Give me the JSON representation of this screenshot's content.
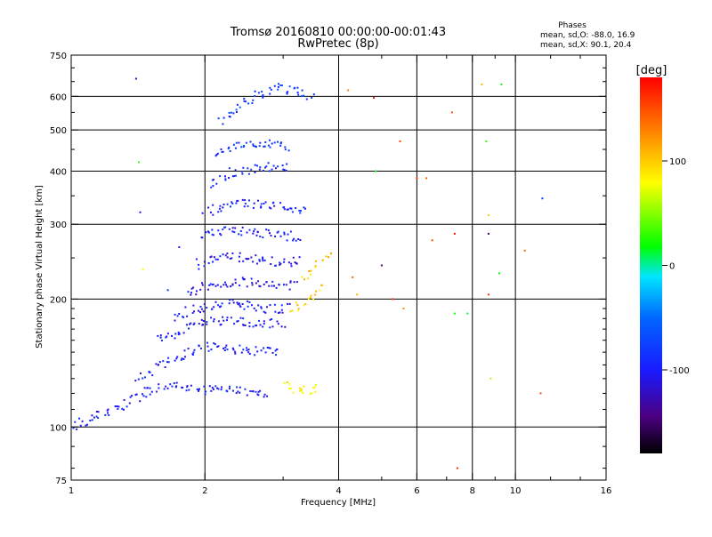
{
  "header": {
    "title": "Tromsø 20160810 00:00:00-00:01:43",
    "subtitle": "RwPretec (8p)",
    "stats_title": "Phases",
    "stats_o": "mean, sd,O: -88.0, 16.9",
    "stats_x": "mean, sd,X:  90.1, 20.4"
  },
  "colorbar": {
    "label": "[deg]",
    "min": -180,
    "max": 180,
    "ticks": [
      {
        "value": 100,
        "label": "100"
      },
      {
        "value": 0,
        "label": "0"
      },
      {
        "value": -100,
        "label": "-100"
      }
    ]
  },
  "chart_data": {
    "type": "scatter",
    "xlabel": "Frequency [MHz]",
    "ylabel": "Stationary phase Virtual Height [km]",
    "xscale": "log",
    "yscale": "log",
    "xlim": [
      1,
      16
    ],
    "ylim": [
      75,
      750
    ],
    "grid": true,
    "xticks": [
      {
        "value": 1,
        "label": "1"
      },
      {
        "value": 2,
        "label": "2"
      },
      {
        "value": 4,
        "label": "4"
      },
      {
        "value": 6,
        "label": "6"
      },
      {
        "value": 8,
        "label": "8"
      },
      {
        "value": 10,
        "label": "10"
      },
      {
        "value": 16,
        "label": "16"
      }
    ],
    "xgrid": [
      2,
      4,
      6,
      8,
      10
    ],
    "xminor": [
      3,
      5,
      7,
      9,
      12,
      14
    ],
    "yticks": [
      {
        "value": 75,
        "label": "75"
      },
      {
        "value": 100,
        "label": "100"
      },
      {
        "value": 200,
        "label": "200"
      },
      {
        "value": 300,
        "label": "300"
      },
      {
        "value": 400,
        "label": "400"
      },
      {
        "value": 500,
        "label": "500"
      },
      {
        "value": 600,
        "label": "600"
      },
      {
        "value": 750,
        "label": "750"
      }
    ],
    "ygrid": [
      100,
      200,
      300,
      400,
      500,
      600
    ],
    "yminor": [
      80,
      90,
      110,
      120,
      130,
      140,
      150,
      160,
      170,
      180,
      190,
      250,
      350,
      450,
      550,
      650,
      700
    ],
    "color_scale": "phase [deg], -180 to 180",
    "traces": [
      {
        "x": [
          1.0,
          1.25,
          1.45,
          1.65,
          1.85,
          2.0,
          2.2,
          2.45,
          2.65,
          2.8
        ],
        "y": [
          100,
          110,
          120,
          126,
          123,
          122,
          122,
          121,
          120,
          120
        ],
        "phase": -100
      },
      {
        "x": [
          1.4,
          1.6,
          1.85,
          2.1,
          2.4,
          2.7,
          2.95
        ],
        "y": [
          130,
          140,
          150,
          155,
          152,
          150,
          150
        ],
        "phase": -100
      },
      {
        "x": [
          1.55,
          1.8,
          2.1,
          2.4,
          2.7,
          3.0
        ],
        "y": [
          160,
          170,
          178,
          176,
          175,
          175
        ],
        "phase": -100
      },
      {
        "x": [
          1.7,
          1.9,
          2.2,
          2.5,
          2.8,
          3.1
        ],
        "y": [
          180,
          190,
          195,
          193,
          190,
          190
        ],
        "phase": -100
      },
      {
        "x": [
          1.8,
          2.0,
          2.3,
          2.6,
          2.9,
          3.2
        ],
        "y": [
          205,
          215,
          220,
          218,
          216,
          215
        ],
        "phase": -110
      },
      {
        "x": [
          1.9,
          2.05,
          2.3,
          2.6,
          2.9,
          3.3
        ],
        "y": [
          240,
          250,
          252,
          248,
          245,
          245
        ],
        "phase": -105
      },
      {
        "x": [
          1.95,
          2.1,
          2.4,
          2.7,
          3.0,
          3.3
        ],
        "y": [
          280,
          290,
          290,
          285,
          282,
          280
        ],
        "phase": -100
      },
      {
        "x": [
          2.0,
          2.2,
          2.5,
          2.8,
          3.1,
          3.4
        ],
        "y": [
          320,
          330,
          335,
          330,
          328,
          325
        ],
        "phase": -95
      },
      {
        "x": [
          2.05,
          2.25,
          2.55,
          2.85,
          3.1
        ],
        "y": [
          370,
          395,
          405,
          410,
          405
        ],
        "phase": -90
      },
      {
        "x": [
          2.1,
          2.3,
          2.6,
          2.9,
          3.1
        ],
        "y": [
          440,
          455,
          465,
          460,
          450
        ],
        "phase": -85
      },
      {
        "x": [
          2.15,
          2.35,
          2.6,
          2.9,
          3.2,
          3.5
        ],
        "y": [
          520,
          560,
          600,
          630,
          620,
          600
        ],
        "phase": -80
      },
      {
        "x": [
          3.0,
          3.2,
          3.4,
          3.6
        ],
        "y": [
          125,
          122,
          122,
          123
        ],
        "phase": 90
      },
      {
        "x": [
          3.1,
          3.3,
          3.5,
          3.7
        ],
        "y": [
          190,
          195,
          205,
          215
        ],
        "phase": 95
      },
      {
        "x": [
          3.3,
          3.5,
          3.7,
          3.85
        ],
        "y": [
          215,
          235,
          250,
          260
        ],
        "phase": 105
      }
    ],
    "outliers": [
      {
        "x": 1.4,
        "y": 660,
        "phase": -120
      },
      {
        "x": 1.42,
        "y": 420,
        "phase": 30
      },
      {
        "x": 1.43,
        "y": 320,
        "phase": -110
      },
      {
        "x": 1.45,
        "y": 235,
        "phase": 80
      },
      {
        "x": 1.65,
        "y": 210,
        "phase": -90
      },
      {
        "x": 1.75,
        "y": 265,
        "phase": -100
      },
      {
        "x": 4.2,
        "y": 620,
        "phase": 130
      },
      {
        "x": 4.3,
        "y": 225,
        "phase": 140
      },
      {
        "x": 4.4,
        "y": 205,
        "phase": 110
      },
      {
        "x": 4.8,
        "y": 595,
        "phase": 170
      },
      {
        "x": 4.85,
        "y": 400,
        "phase": 20
      },
      {
        "x": 5.0,
        "y": 240,
        "phase": -140
      },
      {
        "x": 5.3,
        "y": 200,
        "phase": 160
      },
      {
        "x": 5.5,
        "y": 470,
        "phase": 150
      },
      {
        "x": 5.6,
        "y": 190,
        "phase": 120
      },
      {
        "x": 6.0,
        "y": 385,
        "phase": 160
      },
      {
        "x": 6.3,
        "y": 385,
        "phase": 140
      },
      {
        "x": 6.5,
        "y": 275,
        "phase": 150
      },
      {
        "x": 7.2,
        "y": 550,
        "phase": 150
      },
      {
        "x": 7.3,
        "y": 285,
        "phase": 170
      },
      {
        "x": 7.3,
        "y": 185,
        "phase": 20
      },
      {
        "x": 7.4,
        "y": 80,
        "phase": 160
      },
      {
        "x": 7.8,
        "y": 185,
        "phase": 10
      },
      {
        "x": 8.4,
        "y": 640,
        "phase": 110
      },
      {
        "x": 8.6,
        "y": 470,
        "phase": 30
      },
      {
        "x": 8.7,
        "y": 315,
        "phase": 100
      },
      {
        "x": 8.7,
        "y": 285,
        "phase": -150
      },
      {
        "x": 8.7,
        "y": 205,
        "phase": 160
      },
      {
        "x": 8.8,
        "y": 130,
        "phase": 60
      },
      {
        "x": 9.2,
        "y": 230,
        "phase": 20
      },
      {
        "x": 9.3,
        "y": 640,
        "phase": 20
      },
      {
        "x": 10.5,
        "y": 260,
        "phase": 140
      },
      {
        "x": 11.5,
        "y": 345,
        "phase": -80
      },
      {
        "x": 11.4,
        "y": 120,
        "phase": 150
      }
    ]
  }
}
